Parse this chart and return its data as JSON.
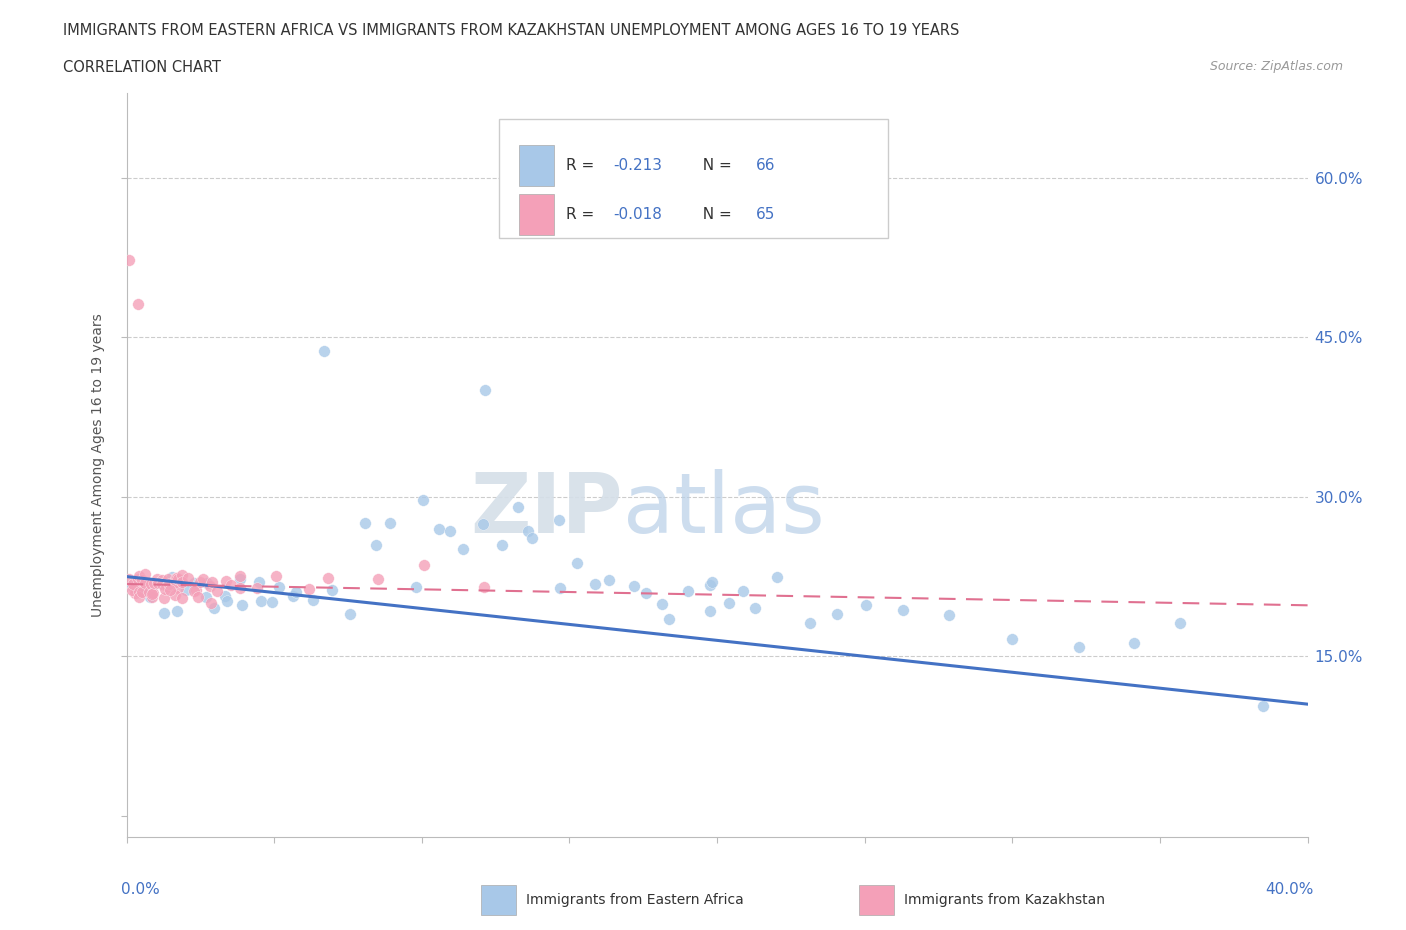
{
  "title_line1": "IMMIGRANTS FROM EASTERN AFRICA VS IMMIGRANTS FROM KAZAKHSTAN UNEMPLOYMENT AMONG AGES 16 TO 19 YEARS",
  "title_line2": "CORRELATION CHART",
  "source": "Source: ZipAtlas.com",
  "ylabel": "Unemployment Among Ages 16 to 19 years",
  "ytick_labels": [
    "15.0%",
    "30.0%",
    "45.0%",
    "60.0%"
  ],
  "ytick_values": [
    0.15,
    0.3,
    0.45,
    0.6
  ],
  "xlim": [
    0.0,
    0.4
  ],
  "ylim": [
    -0.02,
    0.68
  ],
  "color_eastern_africa": "#a8c8e8",
  "color_kazakhstan": "#f4a0b8",
  "color_ea_line": "#4472c4",
  "color_kz_line": "#e07090",
  "legend_r_ea": "R = -0.213",
  "legend_n_ea": "N = 66",
  "legend_r_kz": "R = -0.018",
  "legend_n_kz": "N = 65",
  "color_legend_text": "#4472c4",
  "watermark_zip": "ZIP",
  "watermark_atlas": "atlas",
  "ea_x": [
    0.005,
    0.008,
    0.01,
    0.012,
    0.015,
    0.018,
    0.02,
    0.022,
    0.025,
    0.028,
    0.03,
    0.032,
    0.035,
    0.038,
    0.04,
    0.042,
    0.045,
    0.048,
    0.05,
    0.055,
    0.06,
    0.065,
    0.07,
    0.075,
    0.08,
    0.085,
    0.09,
    0.095,
    0.1,
    0.105,
    0.11,
    0.115,
    0.12,
    0.125,
    0.13,
    0.135,
    0.14,
    0.145,
    0.15,
    0.155,
    0.16,
    0.165,
    0.17,
    0.175,
    0.18,
    0.185,
    0.19,
    0.195,
    0.2,
    0.205,
    0.21,
    0.215,
    0.22,
    0.23,
    0.24,
    0.25,
    0.26,
    0.28,
    0.3,
    0.32,
    0.34,
    0.36,
    0.38,
    0.065,
    0.12,
    0.2
  ],
  "ea_y": [
    0.22,
    0.2,
    0.21,
    0.19,
    0.22,
    0.2,
    0.21,
    0.22,
    0.2,
    0.22,
    0.21,
    0.2,
    0.22,
    0.21,
    0.19,
    0.22,
    0.2,
    0.21,
    0.22,
    0.19,
    0.21,
    0.2,
    0.22,
    0.2,
    0.28,
    0.25,
    0.27,
    0.22,
    0.3,
    0.27,
    0.28,
    0.25,
    0.27,
    0.25,
    0.29,
    0.27,
    0.26,
    0.28,
    0.22,
    0.24,
    0.22,
    0.21,
    0.22,
    0.21,
    0.2,
    0.19,
    0.21,
    0.2,
    0.22,
    0.2,
    0.21,
    0.19,
    0.22,
    0.19,
    0.18,
    0.2,
    0.17,
    0.18,
    0.17,
    0.16,
    0.16,
    0.17,
    0.1,
    0.44,
    0.4,
    0.22
  ],
  "kz_x": [
    0.001,
    0.002,
    0.002,
    0.003,
    0.003,
    0.003,
    0.004,
    0.004,
    0.005,
    0.005,
    0.005,
    0.006,
    0.006,
    0.006,
    0.007,
    0.007,
    0.008,
    0.008,
    0.009,
    0.009,
    0.01,
    0.01,
    0.011,
    0.011,
    0.012,
    0.012,
    0.013,
    0.013,
    0.014,
    0.014,
    0.015,
    0.015,
    0.016,
    0.016,
    0.017,
    0.017,
    0.018,
    0.018,
    0.019,
    0.019,
    0.02,
    0.02,
    0.021,
    0.022,
    0.023,
    0.024,
    0.025,
    0.026,
    0.027,
    0.028,
    0.029,
    0.03,
    0.032,
    0.035,
    0.038,
    0.04,
    0.045,
    0.05,
    0.06,
    0.07,
    0.085,
    0.1,
    0.12,
    0.002,
    0.005
  ],
  "kz_y": [
    0.22,
    0.22,
    0.21,
    0.22,
    0.21,
    0.22,
    0.22,
    0.21,
    0.22,
    0.22,
    0.21,
    0.22,
    0.21,
    0.22,
    0.22,
    0.21,
    0.22,
    0.21,
    0.22,
    0.21,
    0.22,
    0.22,
    0.22,
    0.21,
    0.22,
    0.22,
    0.22,
    0.21,
    0.22,
    0.21,
    0.22,
    0.22,
    0.22,
    0.21,
    0.22,
    0.22,
    0.22,
    0.21,
    0.22,
    0.21,
    0.22,
    0.22,
    0.21,
    0.22,
    0.22,
    0.22,
    0.21,
    0.22,
    0.22,
    0.21,
    0.22,
    0.22,
    0.22,
    0.22,
    0.22,
    0.22,
    0.22,
    0.22,
    0.22,
    0.22,
    0.22,
    0.22,
    0.22,
    0.52,
    0.49
  ]
}
